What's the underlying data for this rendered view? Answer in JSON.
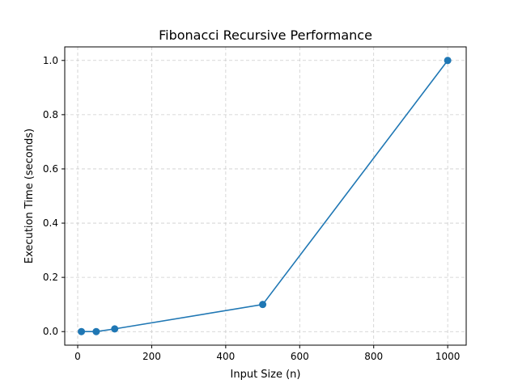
{
  "chart_data": {
    "type": "line",
    "title": "Fibonacci Recursive Performance",
    "xlabel": "Input Size (n)",
    "ylabel": "Execution Time (seconds)",
    "xlim": [
      -35,
      1050
    ],
    "ylim": [
      -0.05,
      1.05
    ],
    "xticks": [
      0,
      200,
      400,
      600,
      800,
      1000
    ],
    "yticks": [
      0.0,
      0.2,
      0.4,
      0.6,
      0.8,
      1.0
    ],
    "xtick_labels": [
      "0",
      "200",
      "400",
      "600",
      "800",
      "1000"
    ],
    "ytick_labels": [
      "0.0",
      "0.2",
      "0.4",
      "0.6",
      "0.8",
      "1.0"
    ],
    "grid": true,
    "series": [
      {
        "x": [
          10,
          50,
          100,
          500,
          1000
        ],
        "y": [
          0.0,
          0.0,
          0.01,
          0.1,
          1.0
        ],
        "color": "#1f77b4",
        "marker": "circle"
      }
    ]
  }
}
